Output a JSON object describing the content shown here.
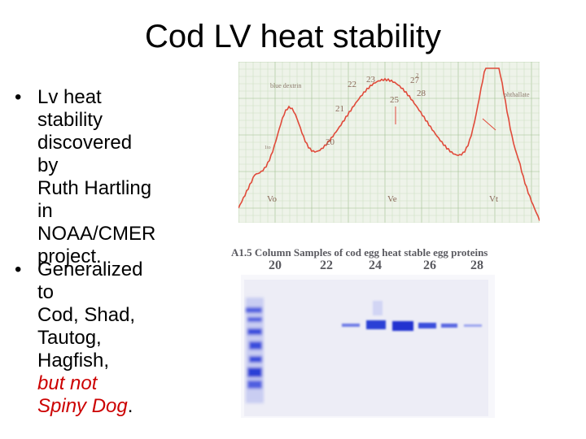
{
  "slide": {
    "title": "Cod LV heat stability",
    "bullets": [
      {
        "marker": "•",
        "lines": [
          "Lv heat stability",
          "discovered by",
          "Ruth Hartling in",
          "NOAA/CMER",
          "project."
        ]
      },
      {
        "marker": "•",
        "lines": [
          "Generalized to",
          "Cod, Shad,",
          "Tautog, Hagfish,"
        ],
        "highlight": "but not Spiny Dog",
        "trailing": "."
      }
    ]
  },
  "chart_data": {
    "type": "line",
    "series_color": "#e04a3a",
    "peak_labels": {
      "blue_dextrin": "blue dextrin",
      "phthallate": "phthallate"
    },
    "fraction_labels": [
      "20",
      "21",
      "22",
      "23",
      "25",
      "27",
      "28"
    ],
    "marker_labels": [
      "Vo",
      "Ve",
      "Vt"
    ],
    "annotations": [
      "1to",
      "2"
    ]
  },
  "gel": {
    "caption": "A1.5 Column Samples of cod egg heat stable egg proteins",
    "lane_labels": [
      "20",
      "22",
      "24",
      "26",
      "28"
    ],
    "band_color": "#2a3fd6"
  }
}
